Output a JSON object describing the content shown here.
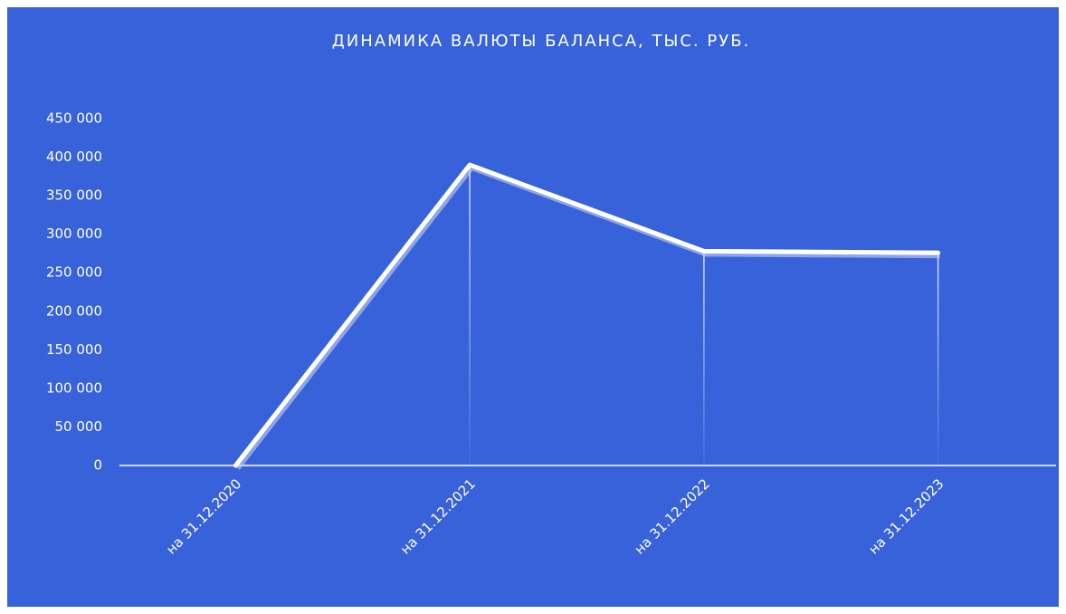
{
  "chart_data": {
    "type": "line",
    "title": "ДИНАМИКА ВАЛЮТЫ БАЛАНСА, ТЫС. РУБ.",
    "categories": [
      "на 31.12.2020",
      "на 31.12.2021",
      "на 31.12.2022",
      "на 31.12.2023"
    ],
    "values": [
      0,
      390000,
      278000,
      276000
    ],
    "color": "#ffffff",
    "background": "#3762d9",
    "ylim": [
      0,
      450000
    ],
    "yticks": [
      0,
      {
        "value": 50000,
        "label": "50 000"
      },
      {
        "value": 100000,
        "label": "100 000"
      },
      {
        "value": 150000,
        "label": "150 000"
      },
      {
        "value": 200000,
        "label": "200 000"
      },
      {
        "value": 250000,
        "label": "250 000"
      },
      {
        "value": 300000,
        "label": "300 000"
      },
      {
        "value": 350000,
        "label": "350 000"
      },
      {
        "value": 400000,
        "label": "400 000"
      },
      {
        "value": 450000,
        "label": "450 000"
      }
    ],
    "grid": false,
    "drop_lines": true
  }
}
